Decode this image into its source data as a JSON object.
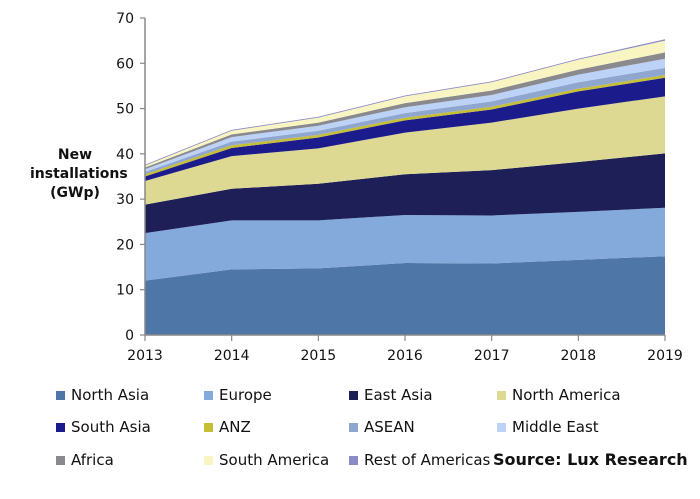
{
  "chart_data": {
    "type": "area",
    "stacked": true,
    "title": "",
    "xlabel": "",
    "ylabel": "New installations (GWp)",
    "x": [
      "2013",
      "2014",
      "2015",
      "2016",
      "2017",
      "2018",
      "2019"
    ],
    "ylim": [
      0,
      70
    ],
    "yticks": [
      0,
      10,
      20,
      30,
      40,
      50,
      60,
      70
    ],
    "grid": false,
    "legend_position": "bottom",
    "series": [
      {
        "name": "North Asia",
        "color": "#4e76a6",
        "values": [
          12.0,
          14.5,
          14.7,
          15.9,
          15.8,
          16.6,
          17.4
        ]
      },
      {
        "name": "Europe",
        "color": "#84a9db",
        "values": [
          10.5,
          10.8,
          10.6,
          10.6,
          10.6,
          10.6,
          10.7
        ]
      },
      {
        "name": "East Asia",
        "color": "#1f1f58",
        "values": [
          6.3,
          7.0,
          8.1,
          9.0,
          10.0,
          11.0,
          12.0
        ]
      },
      {
        "name": "North America",
        "color": "#ddd993",
        "values": [
          5.2,
          7.2,
          7.8,
          9.2,
          10.5,
          11.8,
          12.6
        ]
      },
      {
        "name": "South Asia",
        "color": "#1b1b8c",
        "values": [
          1.0,
          1.8,
          2.4,
          2.7,
          2.9,
          3.8,
          4.1
        ]
      },
      {
        "name": "ANZ",
        "color": "#c6be34",
        "values": [
          0.5,
          0.6,
          0.6,
          0.6,
          0.6,
          0.6,
          0.6
        ]
      },
      {
        "name": "ASEAN",
        "color": "#8fa6cf",
        "values": [
          0.5,
          0.8,
          0.9,
          1.0,
          1.2,
          1.4,
          1.6
        ]
      },
      {
        "name": "Middle East",
        "color": "#bcd2f7",
        "values": [
          0.6,
          1.0,
          1.1,
          1.3,
          1.4,
          1.7,
          2.0
        ]
      },
      {
        "name": "Africa",
        "color": "#8a8a8e",
        "values": [
          0.4,
          0.6,
          0.7,
          0.9,
          1.0,
          1.1,
          1.4
        ]
      },
      {
        "name": "South America",
        "color": "#f9f5c2",
        "values": [
          0.4,
          0.8,
          1.1,
          1.5,
          1.8,
          2.2,
          2.6
        ]
      },
      {
        "name": "Rest of Americas",
        "color": "#8a8ac4",
        "values": [
          0.2,
          0.2,
          0.2,
          0.2,
          0.2,
          0.2,
          0.3
        ]
      }
    ]
  },
  "source": {
    "label": "Source:",
    "text": " Lux Research"
  }
}
